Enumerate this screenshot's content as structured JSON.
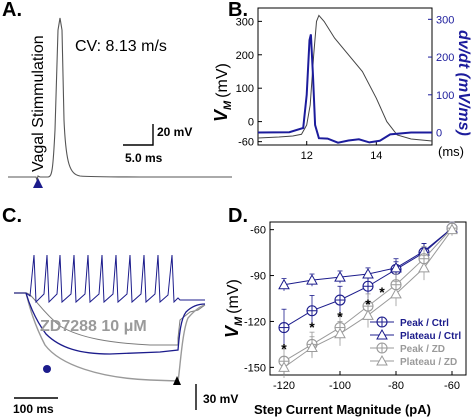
{
  "panels": {
    "A": {
      "letter": "A.",
      "stim_label": "Vagal Stimmulation",
      "cv_text": "CV: 8.13 m/s",
      "scale_v": "20 mV",
      "scale_t": "5.0 ms",
      "marker_color": "#1c1c8c"
    },
    "B": {
      "letter": "B.",
      "right_axis_label": "dv/dt (mV/ms)",
      "ylabel_sub": "M",
      "ylabel_unit": "(mV)",
      "xunit": "(ms)",
      "accent": "#1c1c9c"
    },
    "C": {
      "letter": "C.",
      "drug_label": "ZD7288 10 μM",
      "scale_t": "100 ms",
      "scale_v": "30 mV"
    },
    "D": {
      "letter": "D.",
      "ylabel_sub": "M",
      "ylabel_unit": "(mV)",
      "star": "*"
    }
  },
  "chart_data": [
    {
      "panel": "B",
      "type": "line",
      "xlim": [
        10.6,
        15.6
      ],
      "ylim": [
        -70,
        340
      ],
      "y2lim": [
        -33,
        330
      ],
      "xticks": [
        12,
        14
      ],
      "yticks": [
        -60,
        0,
        100,
        200,
        300
      ],
      "y2ticks": [
        0,
        100,
        200,
        300
      ],
      "y2tick_labels": [
        "0",
        "100",
        "200",
        "300"
      ],
      "series": [
        {
          "axis": "left",
          "color": "#444444",
          "x": [
            10.6,
            11.2,
            11.6,
            11.85,
            12.0,
            12.1,
            12.2,
            12.28,
            12.35,
            12.5,
            12.8,
            13.2,
            13.6,
            14.0,
            14.3,
            14.6,
            15.0,
            15.6
          ],
          "y": [
            -49,
            -46,
            -43,
            -38,
            -10,
            50,
            200,
            300,
            318,
            300,
            250,
            200,
            150,
            70,
            0,
            -40,
            -52,
            -58
          ]
        },
        {
          "axis": "right",
          "color": "#1c1c9c",
          "x": [
            10.6,
            11.5,
            11.9,
            12.0,
            12.08,
            12.12,
            12.18,
            12.24,
            12.35,
            12.6,
            12.9,
            13.2,
            13.5,
            13.8,
            14.1,
            14.4,
            15.0,
            15.6
          ],
          "y": [
            0,
            1,
            12,
            100,
            245,
            260,
            150,
            20,
            -15,
            -16,
            -27,
            -21,
            -18,
            -26,
            -22,
            -5,
            0,
            0
          ]
        }
      ]
    },
    {
      "panel": "D",
      "type": "line",
      "xlabel": "Step Current Magnitude (pA)",
      "xlim": [
        -125,
        -55
      ],
      "ylim": [
        -155,
        -55
      ],
      "xticks": [
        -120,
        -100,
        -80,
        -60
      ],
      "yticks": [
        -150,
        -120,
        -90,
        -60
      ],
      "legend": "bottom-right",
      "series": [
        {
          "name": "Peak / Ctrl",
          "marker": "circle-plus",
          "color": "#1c1c8c",
          "x": [
            -120,
            -110,
            -100,
            -90,
            -80,
            -70,
            -60
          ],
          "y": [
            -124,
            -113,
            -106,
            -97,
            -86,
            -75,
            -59
          ],
          "err": [
            12,
            10,
            9,
            8,
            7,
            6,
            4
          ]
        },
        {
          "name": "Plateau / Ctrl",
          "marker": "triangle",
          "color": "#1c1c8c",
          "x": [
            -120,
            -110,
            -100,
            -90,
            -80,
            -70,
            -60
          ],
          "y": [
            -96,
            -93,
            -91,
            -89,
            -85,
            -74,
            -59
          ],
          "err": [
            4,
            4,
            4,
            4,
            4,
            5,
            4
          ]
        },
        {
          "name": "Peak / ZD",
          "marker": "circle-plus",
          "color": "#9a9a9a",
          "x": [
            -120,
            -110,
            -100,
            -90,
            -80,
            -70,
            -60
          ],
          "y": [
            -146,
            -135,
            -124,
            -110,
            -96,
            -79,
            -59
          ],
          "err": [
            8,
            8,
            8,
            8,
            7,
            8,
            4
          ]
        },
        {
          "name": "Plateau / ZD",
          "marker": "triangle",
          "color": "#9a9a9a",
          "x": [
            -120,
            -110,
            -100,
            -90,
            -80,
            -70,
            -60
          ],
          "y": [
            -150,
            -137,
            -128,
            -116,
            -102,
            -85,
            -60
          ],
          "err": [
            7,
            7,
            8,
            8,
            8,
            8,
            4
          ]
        }
      ],
      "significance": [
        {
          "x": -120,
          "y": -141
        },
        {
          "x": -110,
          "y": -127
        },
        {
          "x": -100,
          "y": -120
        },
        {
          "x": -90,
          "y": -112
        },
        {
          "x": -85,
          "y": -104
        }
      ]
    }
  ]
}
